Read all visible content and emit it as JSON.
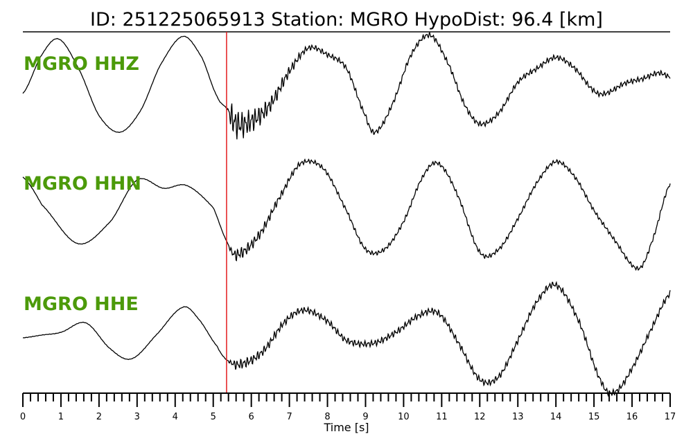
{
  "colors": {
    "trace": "#000000",
    "label": "#4c9a0a",
    "pick": "#e41a1c",
    "axis": "#000000"
  },
  "chart_data": {
    "type": "line",
    "title": "ID: 251225065913   Station: MGRO   HypoDist:    96.4 [km]",
    "xlabel": "Time [s]",
    "xlim": [
      0,
      17
    ],
    "xticks": [
      "0",
      "1",
      "2",
      "3",
      "4",
      "5",
      "6",
      "7",
      "8",
      "9",
      "10",
      "11",
      "12",
      "13",
      "14",
      "15",
      "16",
      "17"
    ],
    "minor_tick_step": 0.2,
    "pick_time": 5.35,
    "grid": false,
    "series": [
      {
        "name": "MGRO HHZ",
        "points": [
          [
            0,
            -0.1
          ],
          [
            0.5,
            0.6
          ],
          [
            0.95,
            0.88
          ],
          [
            1.5,
            0.3
          ],
          [
            2,
            -0.5
          ],
          [
            2.55,
            -0.8
          ],
          [
            3.1,
            -0.4
          ],
          [
            3.6,
            0.4
          ],
          [
            4.2,
            0.93
          ],
          [
            4.7,
            0.55
          ],
          [
            5.1,
            -0.15
          ],
          [
            5.35,
            -0.37
          ],
          [
            5.6,
            -0.65
          ],
          [
            6,
            -0.6
          ],
          [
            6.5,
            -0.3
          ],
          [
            7,
            0.3
          ],
          [
            7.5,
            0.72
          ],
          [
            8,
            0.6
          ],
          [
            8.5,
            0.35
          ],
          [
            9,
            -0.5
          ],
          [
            9.25,
            -0.8
          ],
          [
            9.7,
            -0.3
          ],
          [
            10.2,
            0.6
          ],
          [
            10.7,
            0.95
          ],
          [
            11.2,
            0.4
          ],
          [
            11.6,
            -0.3
          ],
          [
            12,
            -0.65
          ],
          [
            12.5,
            -0.45
          ],
          [
            13,
            0.1
          ],
          [
            13.5,
            0.35
          ],
          [
            14,
            0.55
          ],
          [
            14.5,
            0.35
          ],
          [
            15,
            -0.05
          ],
          [
            15.3,
            -0.1
          ],
          [
            15.8,
            0.08
          ],
          [
            16.3,
            0.17
          ],
          [
            16.7,
            0.27
          ],
          [
            17,
            0.2
          ]
        ],
        "noise": [
          [
            5.5,
            0.3
          ],
          [
            6.5,
            0.15
          ],
          [
            7.5,
            0.05
          ]
        ]
      },
      {
        "name": "MGRO HHN",
        "points": [
          [
            0,
            0.7
          ],
          [
            0.5,
            0.2
          ],
          [
            1.45,
            -0.5
          ],
          [
            2.3,
            -0.1
          ],
          [
            3,
            0.65
          ],
          [
            3.7,
            0.5
          ],
          [
            4.3,
            0.55
          ],
          [
            5,
            0.15
          ],
          [
            5.35,
            -0.45
          ],
          [
            5.6,
            -0.7
          ],
          [
            6.2,
            -0.35
          ],
          [
            6.8,
            0.4
          ],
          [
            7.3,
            0.95
          ],
          [
            7.9,
            0.85
          ],
          [
            8.5,
            0.1
          ],
          [
            9,
            -0.6
          ],
          [
            9.5,
            -0.6
          ],
          [
            10,
            -0.1
          ],
          [
            10.5,
            0.7
          ],
          [
            10.9,
            0.95
          ],
          [
            11.4,
            0.4
          ],
          [
            12,
            -0.65
          ],
          [
            12.5,
            -0.6
          ],
          [
            13,
            -0.05
          ],
          [
            13.5,
            0.6
          ],
          [
            14,
            0.98
          ],
          [
            14.5,
            0.7
          ],
          [
            15,
            0.1
          ],
          [
            15.5,
            -0.4
          ],
          [
            16.15,
            -0.95
          ],
          [
            16.5,
            -0.5
          ],
          [
            17,
            0.58
          ]
        ],
        "noise": [
          [
            5.6,
            0.12
          ],
          [
            7.5,
            0.04
          ]
        ]
      },
      {
        "name": "MGRO HHE",
        "points": [
          [
            0,
            0.0
          ],
          [
            0.5,
            0.05
          ],
          [
            1,
            0.1
          ],
          [
            1.65,
            0.27
          ],
          [
            2.3,
            -0.2
          ],
          [
            2.85,
            -0.38
          ],
          [
            3.5,
            0.05
          ],
          [
            4.2,
            0.55
          ],
          [
            4.6,
            0.35
          ],
          [
            5.1,
            -0.15
          ],
          [
            5.35,
            -0.4
          ],
          [
            5.7,
            -0.48
          ],
          [
            6.3,
            -0.25
          ],
          [
            6.9,
            0.3
          ],
          [
            7.4,
            0.5
          ],
          [
            8,
            0.3
          ],
          [
            8.5,
            -0.05
          ],
          [
            9.2,
            -0.1
          ],
          [
            9.8,
            0.1
          ],
          [
            10.4,
            0.4
          ],
          [
            10.9,
            0.45
          ],
          [
            11.4,
            -0.05
          ],
          [
            12,
            -0.75
          ],
          [
            12.5,
            -0.7
          ],
          [
            13,
            -0.05
          ],
          [
            13.5,
            0.65
          ],
          [
            14,
            0.95
          ],
          [
            14.6,
            0.3
          ],
          [
            15.2,
            -0.8
          ],
          [
            15.55,
            -0.98
          ],
          [
            16,
            -0.55
          ],
          [
            16.5,
            0.15
          ],
          [
            17,
            0.8
          ]
        ],
        "noise": [
          [
            5.6,
            0.1
          ],
          [
            7.3,
            0.06
          ]
        ]
      }
    ]
  }
}
